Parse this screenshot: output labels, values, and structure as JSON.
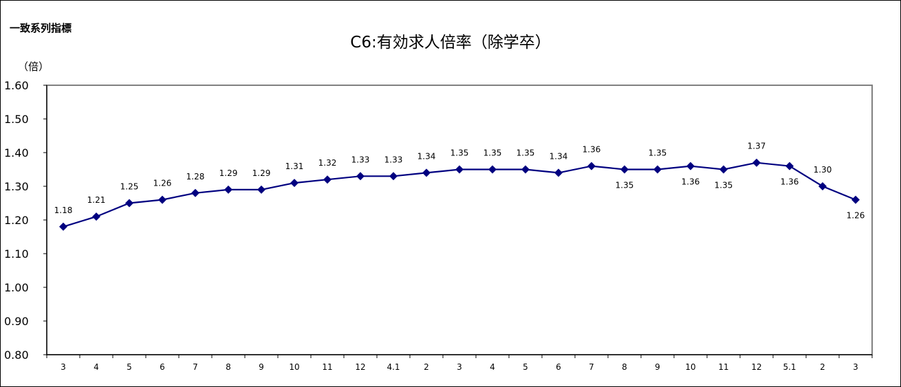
{
  "corner_label": "一致系列指標",
  "unit_label": "（倍）",
  "chart_data": {
    "type": "line",
    "title": "C6:有効求人倍率（除学卒）",
    "ylabel": "（倍）",
    "xlabel": "",
    "ylim": [
      0.8,
      1.6
    ],
    "yticks": [
      "0.80",
      "0.90",
      "1.00",
      "1.10",
      "1.20",
      "1.30",
      "1.40",
      "1.50",
      "1.60"
    ],
    "categories": [
      "3",
      "4",
      "5",
      "6",
      "7",
      "8",
      "9",
      "10",
      "11",
      "12",
      "4.1",
      "2",
      "3",
      "4",
      "5",
      "6",
      "7",
      "8",
      "9",
      "10",
      "11",
      "12",
      "5.1",
      "2",
      "3"
    ],
    "series": [
      {
        "values": [
          1.18,
          1.21,
          1.25,
          1.26,
          1.28,
          1.29,
          1.29,
          1.31,
          1.32,
          1.33,
          1.33,
          1.34,
          1.35,
          1.35,
          1.35,
          1.34,
          1.36,
          1.35,
          1.35,
          1.36,
          1.35,
          1.37,
          1.36,
          1.3,
          1.26
        ],
        "labels": [
          "1.18",
          "1.21",
          "1.25",
          "1.26",
          "1.28",
          "1.29",
          "1.29",
          "1.31",
          "1.32",
          "1.33",
          "1.33",
          "1.34",
          "1.35",
          "1.35",
          "1.35",
          "1.34",
          "1.36",
          "1.35",
          "1.35",
          "1.36",
          "1.35",
          "1.37",
          "1.36",
          "1.30",
          "1.26"
        ],
        "label_position": [
          "above",
          "above",
          "above",
          "above",
          "above",
          "above",
          "above",
          "above",
          "above",
          "above",
          "above",
          "above",
          "above",
          "above",
          "above",
          "above",
          "above",
          "below",
          "above",
          "below",
          "below",
          "above",
          "below",
          "above",
          "below"
        ]
      }
    ],
    "colors": {
      "line": "#000080",
      "marker": "#000080",
      "plot_border": "#808080",
      "axis": "#000000"
    },
    "grid": false
  }
}
